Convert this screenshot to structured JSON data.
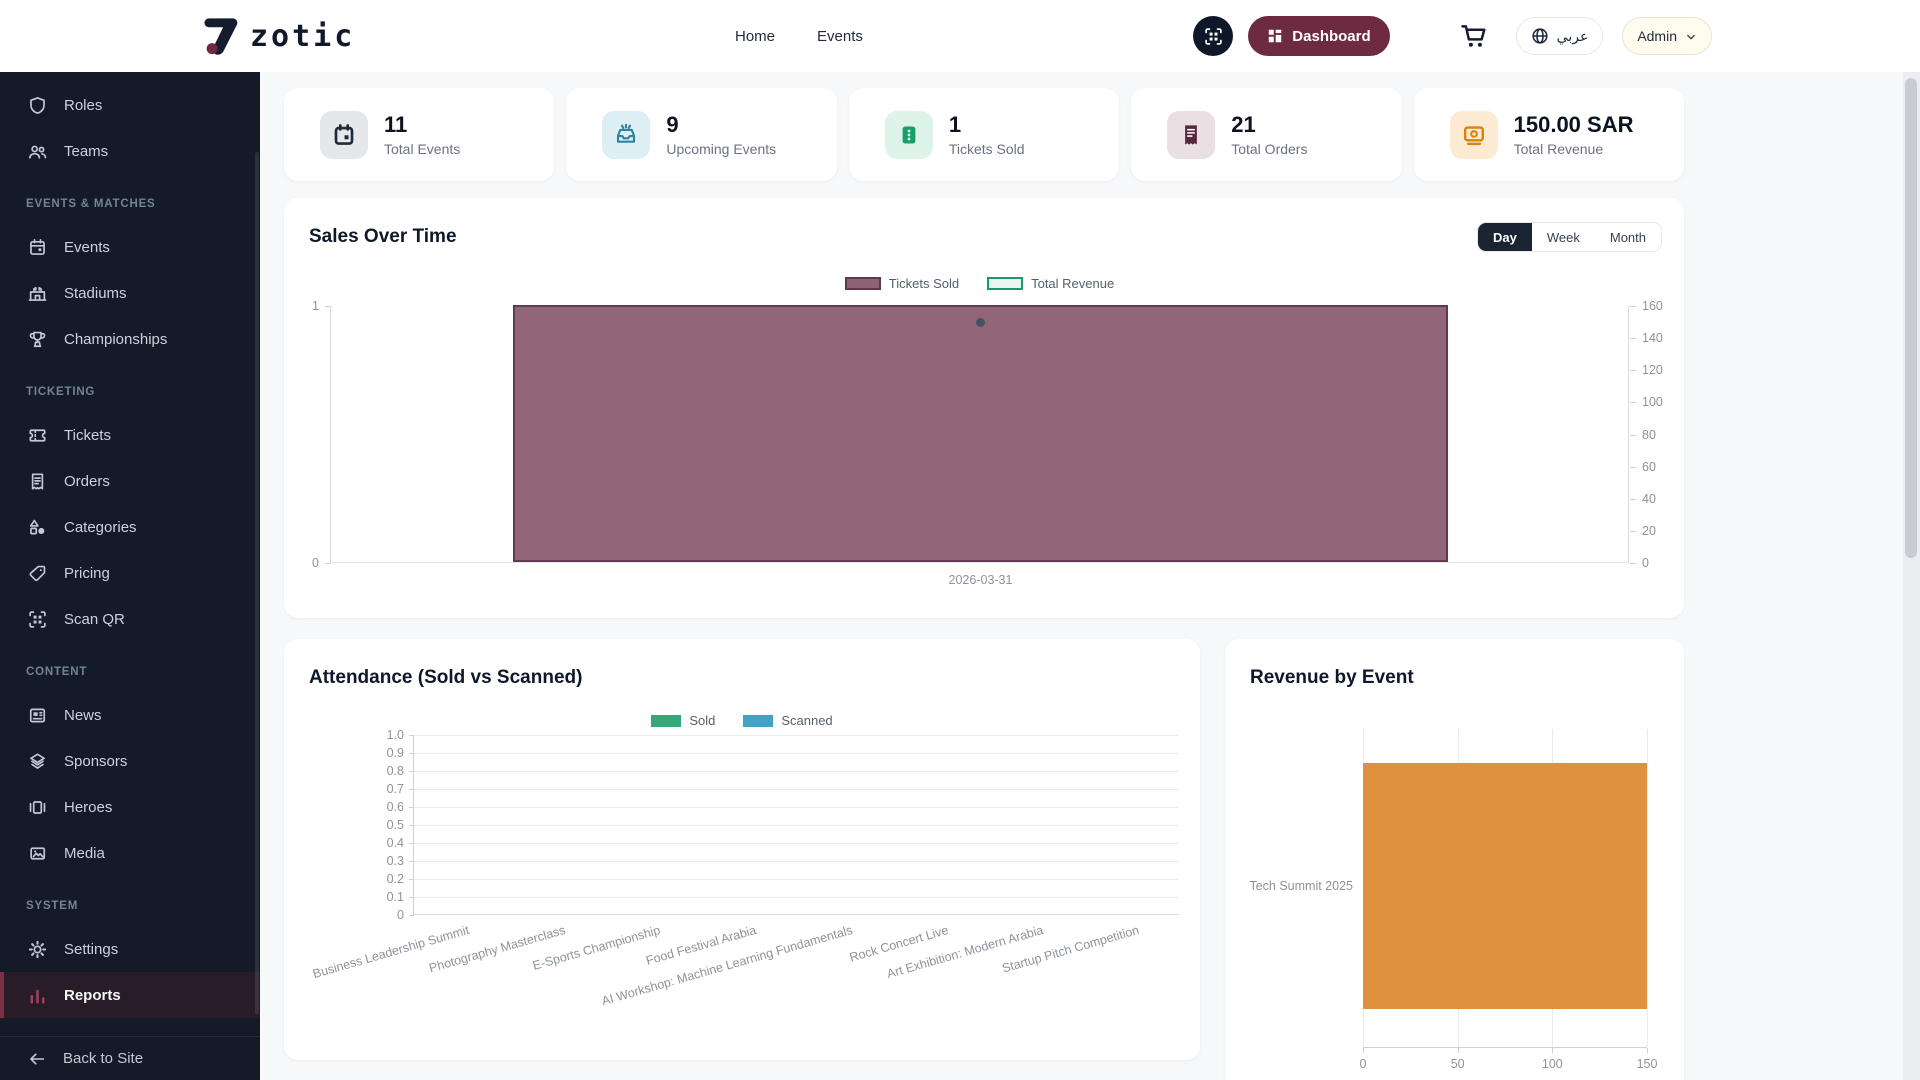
{
  "navbar": {
    "logo_text": "zotic",
    "links": [
      {
        "label": "Home"
      },
      {
        "label": "Events"
      }
    ],
    "dashboard_label": "Dashboard",
    "language_label": "عربي",
    "admin_label": "Admin"
  },
  "sidebar": {
    "sections": [
      {
        "title": null,
        "items": [
          {
            "label": "Roles",
            "icon": "shield-icon"
          },
          {
            "label": "Teams",
            "icon": "users-icon"
          }
        ]
      },
      {
        "title": "EVENTS & MATCHES",
        "items": [
          {
            "label": "Events",
            "icon": "calendar-icon"
          },
          {
            "label": "Stadiums",
            "icon": "stadium-icon"
          },
          {
            "label": "Championships",
            "icon": "trophy-icon"
          }
        ]
      },
      {
        "title": "TICKETING",
        "items": [
          {
            "label": "Tickets",
            "icon": "ticket-icon"
          },
          {
            "label": "Orders",
            "icon": "receipt-icon"
          },
          {
            "label": "Categories",
            "icon": "shapes-icon"
          },
          {
            "label": "Pricing",
            "icon": "tag-icon"
          },
          {
            "label": "Scan QR",
            "icon": "qr-scan-icon"
          }
        ]
      },
      {
        "title": "CONTENT",
        "items": [
          {
            "label": "News",
            "icon": "news-icon"
          },
          {
            "label": "Sponsors",
            "icon": "layers-icon"
          },
          {
            "label": "Heroes",
            "icon": "gallery-icon"
          },
          {
            "label": "Media",
            "icon": "image-icon"
          }
        ]
      },
      {
        "title": "SYSTEM",
        "items": [
          {
            "label": "Settings",
            "icon": "gear-icon"
          },
          {
            "label": "Reports",
            "icon": "bar-chart-icon",
            "active": true
          }
        ]
      }
    ],
    "back_label": "Back to Site"
  },
  "stats": [
    {
      "value": "11",
      "label": "Total Events",
      "icon": "calendar-solid-icon",
      "icon_bg": "#e5e7eb",
      "icon_color": "#1f2937"
    },
    {
      "value": "9",
      "label": "Upcoming Events",
      "icon": "tray-icon",
      "icon_bg": "#ddeef4",
      "icon_color": "#2e84a0"
    },
    {
      "value": "1",
      "label": "Tickets Sold",
      "icon": "ticket-solid-icon",
      "icon_bg": "#def3e9",
      "icon_color": "#16a06b"
    },
    {
      "value": "21",
      "label": "Total Orders",
      "icon": "receipt-solid-icon",
      "icon_bg": "#eae0e4",
      "icon_color": "#55283c"
    },
    {
      "value": "150.00 SAR",
      "label": "Total Revenue",
      "icon": "banknote-icon",
      "icon_bg": "#fcead2",
      "icon_color": "#d9820f"
    }
  ],
  "chart_data": [
    {
      "id": "sales",
      "type": "bar",
      "title": "Sales Over Time",
      "toggle_options": [
        "Day",
        "Week",
        "Month"
      ],
      "active_toggle": "Day",
      "categories": [
        "2026-03-31"
      ],
      "series": [
        {
          "name": "Tickets Sold",
          "type": "bar",
          "axis": "left",
          "values": [
            1
          ],
          "color": "#926579",
          "border": "#5f3a50",
          "swatch_fill": "#8f6276",
          "swatch_border": "#5f3a4e"
        },
        {
          "name": "Total Revenue",
          "type": "line",
          "axis": "right",
          "values": [
            150
          ],
          "color": "#475261",
          "swatch_fill": "#e9f6f0",
          "swatch_border": "#169a6e"
        }
      ],
      "left_axis": {
        "min": 0,
        "max": 1,
        "ticks": [
          "1",
          "0"
        ]
      },
      "right_axis": {
        "min": 0,
        "max": 160,
        "ticks": [
          "160",
          "140",
          "120",
          "100",
          "80",
          "60",
          "40",
          "20",
          "0"
        ]
      },
      "legend_position": "top"
    },
    {
      "id": "attendance",
      "type": "bar",
      "title": "Attendance (Sold vs Scanned)",
      "categories": [
        "Business Leadership Summit",
        "Photography Masterclass",
        "E-Sports Championship",
        "Food Festival Arabia",
        "AI Workshop: Machine Learning Fundamentals",
        "Rock Concert Live",
        "Art Exhibition: Modern Arabia",
        "Startup Pitch Competition"
      ],
      "series": [
        {
          "name": "Sold",
          "values": [
            0,
            0,
            0,
            0,
            0,
            0,
            0,
            0
          ],
          "color": "#35a877"
        },
        {
          "name": "Scanned",
          "values": [
            0,
            0,
            0,
            0,
            0,
            0,
            0,
            0
          ],
          "color": "#42a4c4"
        }
      ],
      "y_ticks": [
        "1.0",
        "0.9",
        "0.8",
        "0.7",
        "0.6",
        "0.5",
        "0.4",
        "0.3",
        "0.2",
        "0.1",
        "0"
      ],
      "ylim": [
        0,
        1
      ],
      "legend_position": "top",
      "grid": true
    },
    {
      "id": "revenue",
      "type": "bar-horizontal",
      "title": "Revenue by Event",
      "categories": [
        "Tech Summit 2025"
      ],
      "values": [
        150
      ],
      "color": "#e0913d",
      "x_ticks": [
        "0",
        "50",
        "100",
        "150"
      ],
      "xlim": [
        0,
        150
      ],
      "grid": true
    }
  ]
}
